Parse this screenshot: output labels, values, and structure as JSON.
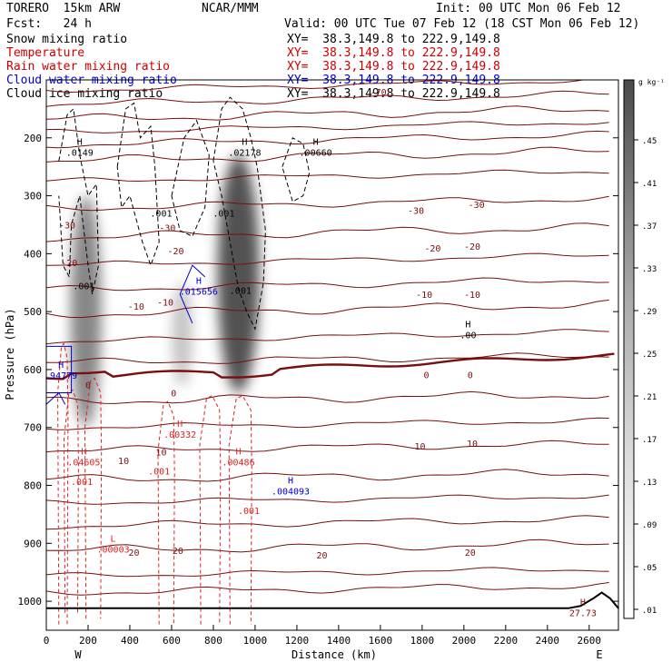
{
  "header": {
    "model": "TORERO  15km ARW",
    "center": "NCAR/MMM",
    "init": "Init: 00 UTC Mon 06 Feb 12",
    "fcst": "Fcst:   24 h",
    "valid": "Valid: 00 UTC Tue 07 Feb 12 (18 CST Mon 06 Feb 12)"
  },
  "fields": [
    {
      "name": "Snow mixing ratio",
      "xy": "XY=  38.3,149.8 to 222.9,149.8",
      "color": "#000000"
    },
    {
      "name": "Temperature",
      "xy": "XY=  38.3,149.8 to 222.9,149.8",
      "color": "#cc0000"
    },
    {
      "name": "Rain water mixing ratio",
      "xy": "XY=  38.3,149.8 to 222.9,149.8",
      "color": "#cc0000"
    },
    {
      "name": "Cloud water mixing ratio",
      "xy": "XY=  38.3,149.8 to 222.9,149.8",
      "color": "#0000cc"
    },
    {
      "name": "Cloud ice mixing ratio",
      "xy": "XY=  38.3,149.8 to 222.9,149.8",
      "color": "#000000"
    }
  ],
  "colors": {
    "temperature": "#7a0d0d",
    "rain": "#dd2222",
    "cloud_water": "#0000cc",
    "cloud_ice": "#000000",
    "terrain": "#000000"
  },
  "chart_data": {
    "type": "cross-section",
    "xlabel": "Distance (km)",
    "ylabel": "Pressure (hPa)",
    "xlim": [
      0,
      2740
    ],
    "ylim": [
      1050,
      100
    ],
    "x_ticks": [
      0,
      200,
      400,
      600,
      800,
      1000,
      1200,
      1400,
      1600,
      1800,
      2000,
      2200,
      2400,
      2600
    ],
    "y_ticks": [
      200,
      300,
      400,
      500,
      600,
      700,
      800,
      900,
      1000
    ],
    "x_end_labels": {
      "left": "W",
      "right": "E"
    },
    "colorbar": {
      "unit": "g kg⁻¹",
      "levels": [
        ".01",
        ".05",
        ".09",
        ".13",
        ".17",
        ".21",
        ".25",
        ".29",
        ".33",
        ".37",
        ".41",
        ".45"
      ]
    },
    "snow_cells": [
      {
        "x_center": 190,
        "p_top": 300,
        "p_bottom": 700,
        "max": 0.3
      },
      {
        "x_center": 650,
        "p_top": 450,
        "p_bottom": 630,
        "max": 0.12
      },
      {
        "x_center": 920,
        "p_top": 230,
        "p_bottom": 640,
        "max": 0.45
      }
    ],
    "temperature_labels": [
      {
        "text": "-70",
        "x": 1590,
        "p": 120
      },
      {
        "text": "-30",
        "x": 100,
        "p": 350
      },
      {
        "text": "-30",
        "x": 580,
        "p": 355
      },
      {
        "text": "-30",
        "x": 1770,
        "p": 325
      },
      {
        "text": "-30",
        "x": 2060,
        "p": 315
      },
      {
        "text": "-20",
        "x": 110,
        "p": 415
      },
      {
        "text": "-20",
        "x": 620,
        "p": 395
      },
      {
        "text": "-20",
        "x": 1850,
        "p": 390
      },
      {
        "text": "-20",
        "x": 2040,
        "p": 387
      },
      {
        "text": "-10",
        "x": 430,
        "p": 490
      },
      {
        "text": "-10",
        "x": 570,
        "p": 483
      },
      {
        "text": "-10",
        "x": 1810,
        "p": 470
      },
      {
        "text": "-10",
        "x": 2040,
        "p": 470
      },
      {
        "text": "0",
        "x": 200,
        "p": 626
      },
      {
        "text": "0",
        "x": 610,
        "p": 640
      },
      {
        "text": "0",
        "x": 1820,
        "p": 609
      },
      {
        "text": "0",
        "x": 2030,
        "p": 609
      },
      {
        "text": "10",
        "x": 370,
        "p": 757
      },
      {
        "text": "10",
        "x": 550,
        "p": 742
      },
      {
        "text": "10",
        "x": 1790,
        "p": 732
      },
      {
        "text": "10",
        "x": 2040,
        "p": 727
      },
      {
        "text": "20",
        "x": 420,
        "p": 915
      },
      {
        "text": "20",
        "x": 630,
        "p": 912
      },
      {
        "text": "20",
        "x": 1320,
        "p": 920
      },
      {
        "text": "20",
        "x": 2030,
        "p": 915
      }
    ],
    "extrema": [
      {
        "kind": "H",
        "value": ".0149",
        "x": 160,
        "p": 215,
        "field": "snow"
      },
      {
        "kind": "H",
        "value": ".02178",
        "x": 950,
        "p": 215,
        "field": "snow"
      },
      {
        "kind": "H",
        "value": ".00660",
        "x": 1290,
        "p": 215,
        "field": "snow"
      },
      {
        "kind": "H",
        "value": ".00",
        "x": 2020,
        "p": 530,
        "field": "snow"
      },
      {
        "kind": "H",
        "value": ".015656",
        "x": 730,
        "p": 455,
        "field": "cloud_water"
      },
      {
        "kind": "H",
        "value": ".94779",
        "x": 70,
        "p": 600,
        "field": "cloud_water"
      },
      {
        "kind": "H",
        "value": ".004093",
        "x": 1170,
        "p": 800,
        "field": "cloud_water"
      },
      {
        "kind": "H",
        "value": ".00332",
        "x": 640,
        "p": 702,
        "field": "rain"
      },
      {
        "kind": "H",
        "value": ".04605",
        "x": 180,
        "p": 750,
        "field": "rain"
      },
      {
        "kind": "H",
        "value": ".00486",
        "x": 920,
        "p": 750,
        "field": "rain"
      },
      {
        "kind": "L",
        "value": ".00003",
        "x": 320,
        "p": 900,
        "field": "rain"
      },
      {
        "kind": "H",
        "value": "27.73",
        "x": 2570,
        "p": 1010,
        "field": "temperature"
      }
    ],
    "contour_labels": [
      {
        "text": ".001",
        "x": 550,
        "p": 330,
        "color": "black"
      },
      {
        "text": ".001",
        "x": 850,
        "p": 330,
        "color": "black"
      },
      {
        "text": ".001",
        "x": 180,
        "p": 455,
        "color": "black"
      },
      {
        "text": ".001",
        "x": 930,
        "p": 463,
        "color": "black"
      },
      {
        "text": ".001",
        "x": 170,
        "p": 793,
        "color": "red"
      },
      {
        "text": ".001",
        "x": 540,
        "p": 775,
        "color": "red"
      },
      {
        "text": ".001",
        "x": 970,
        "p": 843,
        "color": "red"
      }
    ]
  }
}
